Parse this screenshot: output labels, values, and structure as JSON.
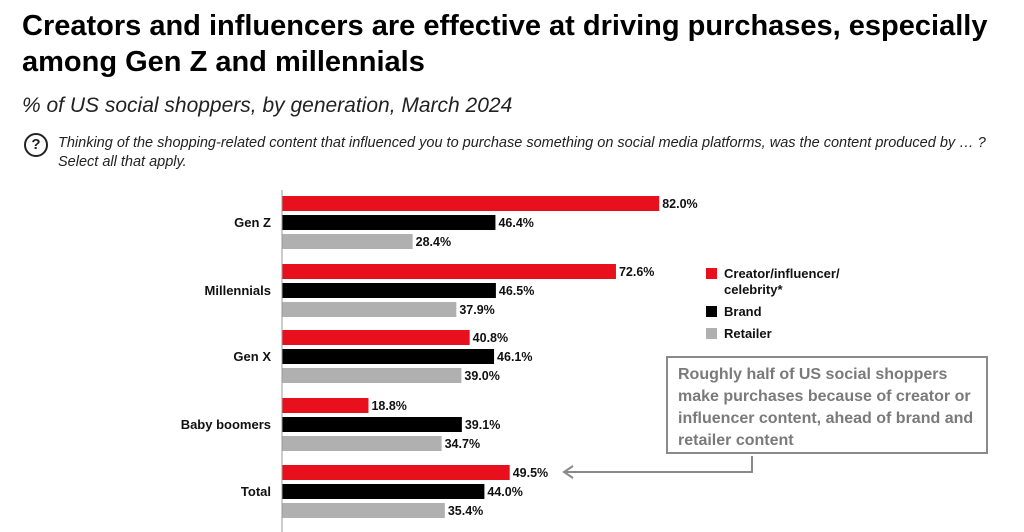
{
  "title": "Creators and influencers are effective at driving purchases, especially among Gen Z and millennials",
  "subtitle": "% of US social shoppers, by generation, March 2024",
  "question": "Thinking of the shopping-related content that influenced you to purchase something on social media platforms, was the content produced by … ? Select all that apply.",
  "question_icon": "?",
  "callout": "Roughly half of US social shoppers make purchases because of creator or influencer content, ahead of brand and retailer content",
  "chart_data": {
    "type": "bar",
    "orientation": "horizontal",
    "categories": [
      "Gen Z",
      "Millennials",
      "Gen X",
      "Baby boomers",
      "Total"
    ],
    "series": [
      {
        "name": "Creator/influencer/ celebrity*",
        "color": "#e8101c",
        "values": [
          82.0,
          72.6,
          40.8,
          18.8,
          49.5
        ]
      },
      {
        "name": "Brand",
        "color": "#000000",
        "values": [
          46.4,
          46.5,
          46.1,
          39.1,
          44.0
        ]
      },
      {
        "name": "Retailer",
        "color": "#b0b0b0",
        "values": [
          28.4,
          37.9,
          39.0,
          34.7,
          35.4
        ]
      }
    ],
    "value_suffix": "%",
    "legend_position": "right",
    "xlim": [
      0,
      100
    ],
    "grid": false
  }
}
